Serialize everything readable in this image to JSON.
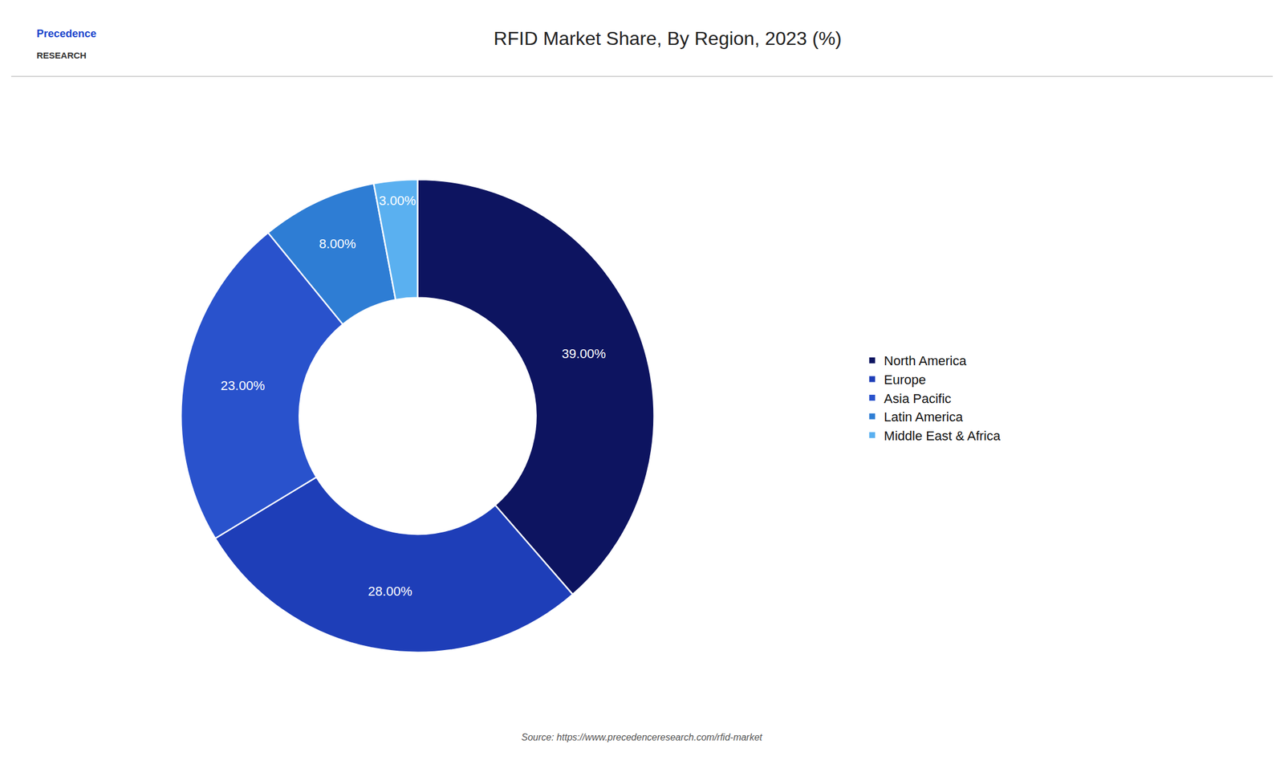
{
  "chart_data": {
    "type": "pie",
    "title": "RFID Market Share, By Region, 2023 (%)",
    "categories": [
      "North America",
      "Europe",
      "Asia Pacific",
      "Latin America",
      "Middle East & Africa"
    ],
    "values": [
      39,
      28,
      23,
      8,
      3
    ],
    "value_labels": [
      "39.00%",
      "28.00%",
      "23.00%",
      "8.00%",
      "3.00%"
    ],
    "colors": [
      "#0d1460",
      "#1e3eb8",
      "#2952cc",
      "#2e7dd4",
      "#5ab0f0"
    ],
    "data_labels": true,
    "legend": "right",
    "annotations": [
      "Precedence",
      "RESEARCH",
      "Source: https://www.precedenceresearch.com/rfid-market"
    ]
  }
}
